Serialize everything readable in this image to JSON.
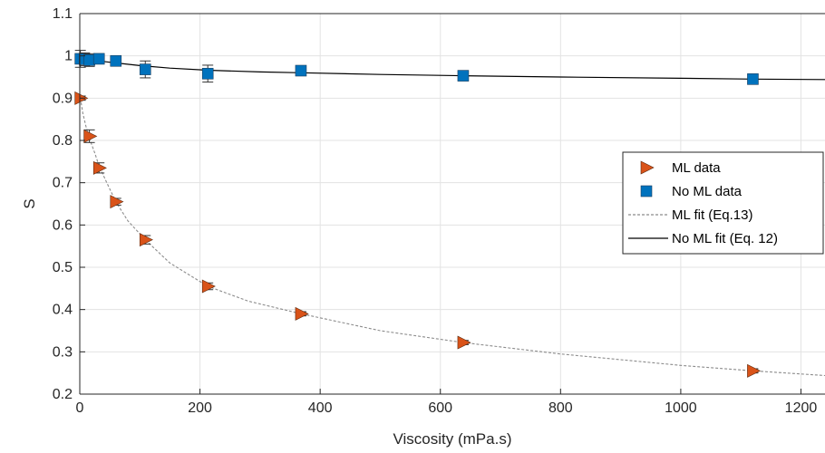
{
  "chart_data": {
    "type": "scatter",
    "title": "",
    "xlabel": "Viscosity (mPa.s)",
    "ylabel": "S",
    "xlim": [
      0,
      1240
    ],
    "ylim": [
      0.2,
      1.1
    ],
    "xticks": [
      "0",
      "200",
      "400",
      "600",
      "800",
      "1000",
      "1200"
    ],
    "yticks": [
      "0.2",
      "0.3",
      "0.4",
      "0.5",
      "0.6",
      "0.7",
      "0.8",
      "0.9",
      "1",
      "1.1"
    ],
    "grid": true,
    "legend_position": "right",
    "series": [
      {
        "name": "ML data",
        "kind": "markers",
        "marker": "triangle-right",
        "color": "#d95319",
        "x": [
          1,
          16,
          32,
          60,
          109,
          213,
          368,
          638,
          1120
        ],
        "y": [
          0.9,
          0.81,
          0.735,
          0.655,
          0.565,
          0.455,
          0.39,
          0.322,
          0.255
        ],
        "error": [
          0.005,
          0.015,
          0.012,
          0.008,
          0.01,
          0.008,
          0.005,
          0.005,
          0.005
        ]
      },
      {
        "name": "No ML data",
        "kind": "markers",
        "marker": "square",
        "color": "#0072bd",
        "x": [
          1,
          8,
          16,
          32,
          60,
          109,
          213,
          368,
          638,
          1120
        ],
        "y": [
          0.993,
          0.992,
          0.99,
          0.993,
          0.988,
          0.968,
          0.958,
          0.965,
          0.953,
          0.945
        ],
        "error": [
          0.02,
          0.015,
          0.015,
          0.012,
          0.008,
          0.02,
          0.02,
          0.008,
          0.01,
          0.008
        ]
      },
      {
        "name": "ML fit (Eq.13)",
        "kind": "dashed-line",
        "color": "#8c8c8c",
        "x": [
          1,
          5,
          10,
          16,
          25,
          32,
          45,
          60,
          80,
          109,
          150,
          213,
          280,
          368,
          500,
          638,
          800,
          1000,
          1120,
          1240
        ],
        "y": [
          0.9,
          0.865,
          0.835,
          0.805,
          0.77,
          0.74,
          0.7,
          0.655,
          0.61,
          0.565,
          0.51,
          0.455,
          0.42,
          0.39,
          0.35,
          0.322,
          0.295,
          0.268,
          0.255,
          0.244
        ]
      },
      {
        "name": "No ML fit (Eq. 12)",
        "kind": "line",
        "color": "#000000",
        "x": [
          1,
          20,
          50,
          100,
          150,
          213,
          300,
          368,
          500,
          638,
          800,
          1000,
          1120,
          1240
        ],
        "y": [
          0.992,
          0.99,
          0.985,
          0.977,
          0.971,
          0.966,
          0.962,
          0.96,
          0.956,
          0.953,
          0.95,
          0.947,
          0.945,
          0.944
        ]
      }
    ]
  }
}
